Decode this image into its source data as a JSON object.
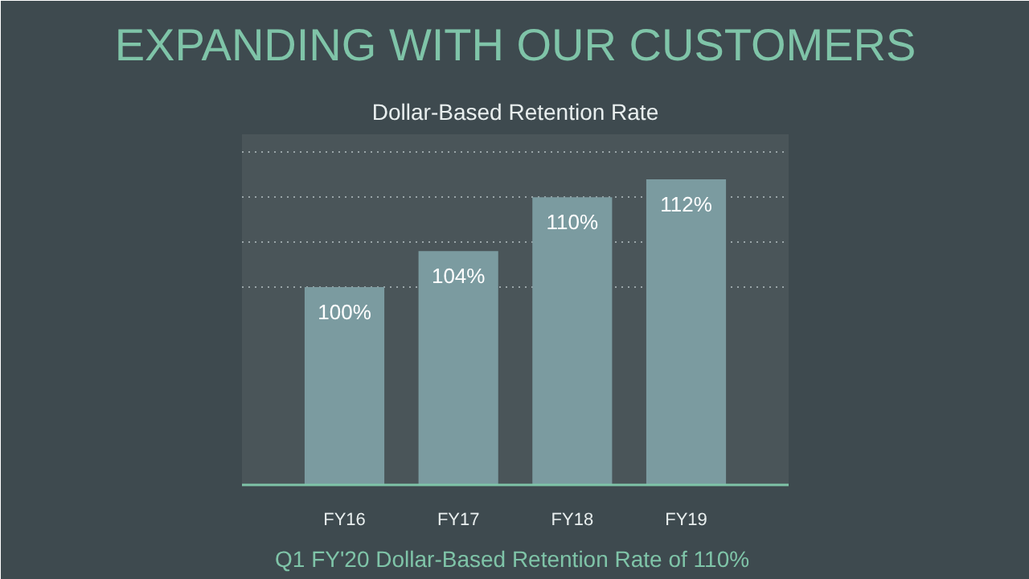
{
  "chart_data": {
    "type": "bar",
    "title": "EXPANDING WITH OUR CUSTOMERS",
    "subtitle": "Dollar-Based Retention Rate",
    "categories": [
      "FY16",
      "FY17",
      "FY18",
      "FY19"
    ],
    "values": [
      100,
      104,
      110,
      112
    ],
    "value_labels": [
      "100%",
      "104%",
      "110%",
      "112%"
    ],
    "color": "#7b9ba0",
    "ylim": [
      78,
      117
    ],
    "yticks": [
      {
        "value": 100,
        "label": null
      },
      {
        "value": 105,
        "label": null
      },
      {
        "value": 110,
        "label": null
      },
      {
        "value": 115,
        "label": null
      }
    ],
    "tick_labels": "x",
    "grid": "y",
    "annotations": [
      "Q1  FY'20 Dollar-Based Retention Rate of 110%"
    ]
  }
}
